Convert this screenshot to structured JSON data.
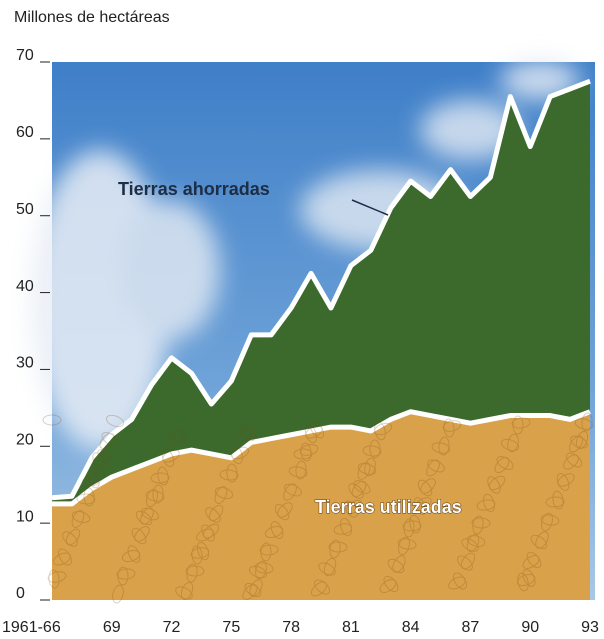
{
  "chart_data": {
    "type": "stacked-area",
    "y_label": "Millones de hectáreas",
    "categories": [
      "1961-66",
      null,
      null,
      "69",
      null,
      null,
      "72",
      null,
      null,
      "75",
      null,
      null,
      "78",
      null,
      null,
      "81",
      null,
      null,
      "84",
      null,
      null,
      "87",
      null,
      null,
      "90",
      null,
      null,
      "93"
    ],
    "series": [
      {
        "name": "Tierras utilizadas",
        "color": "#d9a24a",
        "values": [
          12.5,
          12.5,
          14.5,
          16,
          17,
          18,
          19,
          19.5,
          19,
          18.5,
          20.5,
          21,
          21.5,
          22,
          22.5,
          22.5,
          22,
          23.5,
          24.5,
          24,
          23.5,
          23,
          23.5,
          24,
          24,
          24,
          23.5,
          24.5
        ]
      },
      {
        "name": "Tierras ahorradas",
        "color": "#3b6a2c",
        "values": [
          0.8,
          1.0,
          4.0,
          5.5,
          6.5,
          10,
          12.5,
          10,
          6.5,
          10,
          14,
          13.5,
          16.5,
          20.5,
          15.5,
          21,
          23.5,
          27.5,
          30,
          28.5,
          32.5,
          29.5,
          31.5,
          41.5,
          35,
          41.5,
          43,
          43
        ]
      }
    ],
    "ylim": [
      0,
      70
    ],
    "yticks": [
      0,
      10,
      20,
      30,
      40,
      50,
      60,
      70
    ]
  }
}
